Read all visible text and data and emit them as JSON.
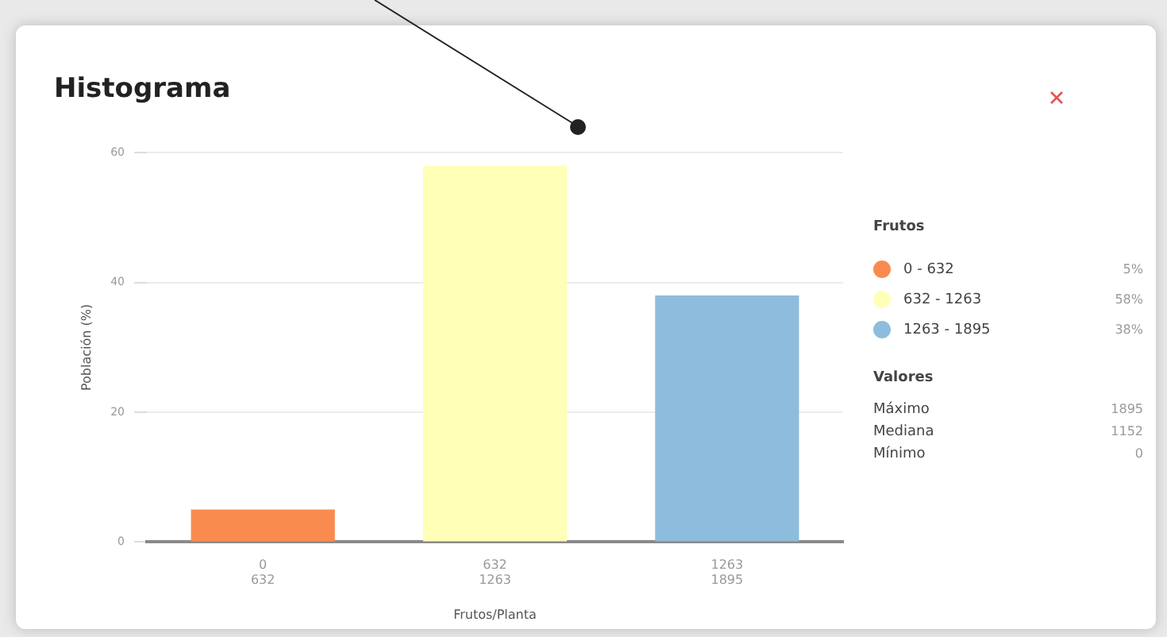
{
  "chart_data": {
    "type": "bar",
    "title": "Histograma",
    "xlabel": "Frutos/Planta",
    "ylabel": "Población (%)",
    "legend_title": "Frutos",
    "legend": "right",
    "categories": [
      "0 632",
      "632 1263",
      "1263 1895"
    ],
    "series": [
      {
        "name": "0 - 632",
        "color": "#f98b4e",
        "values": [
          5,
          null,
          null
        ]
      },
      {
        "name": "632 - 1263",
        "color": "#ffffb8",
        "values": [
          null,
          58,
          null
        ]
      },
      {
        "name": "1263 - 1895",
        "color": "#8ebcdc",
        "values": [
          null,
          null,
          38
        ]
      }
    ],
    "ylim": [
      0,
      60
    ],
    "yticks": [
      0,
      20,
      40,
      60
    ],
    "grid": "y",
    "annotations": [
      "5%",
      "58%",
      "38%",
      "Valores",
      "Máximo",
      "1895",
      "Mediana",
      "1152",
      "Mínimo",
      "0"
    ]
  }
}
